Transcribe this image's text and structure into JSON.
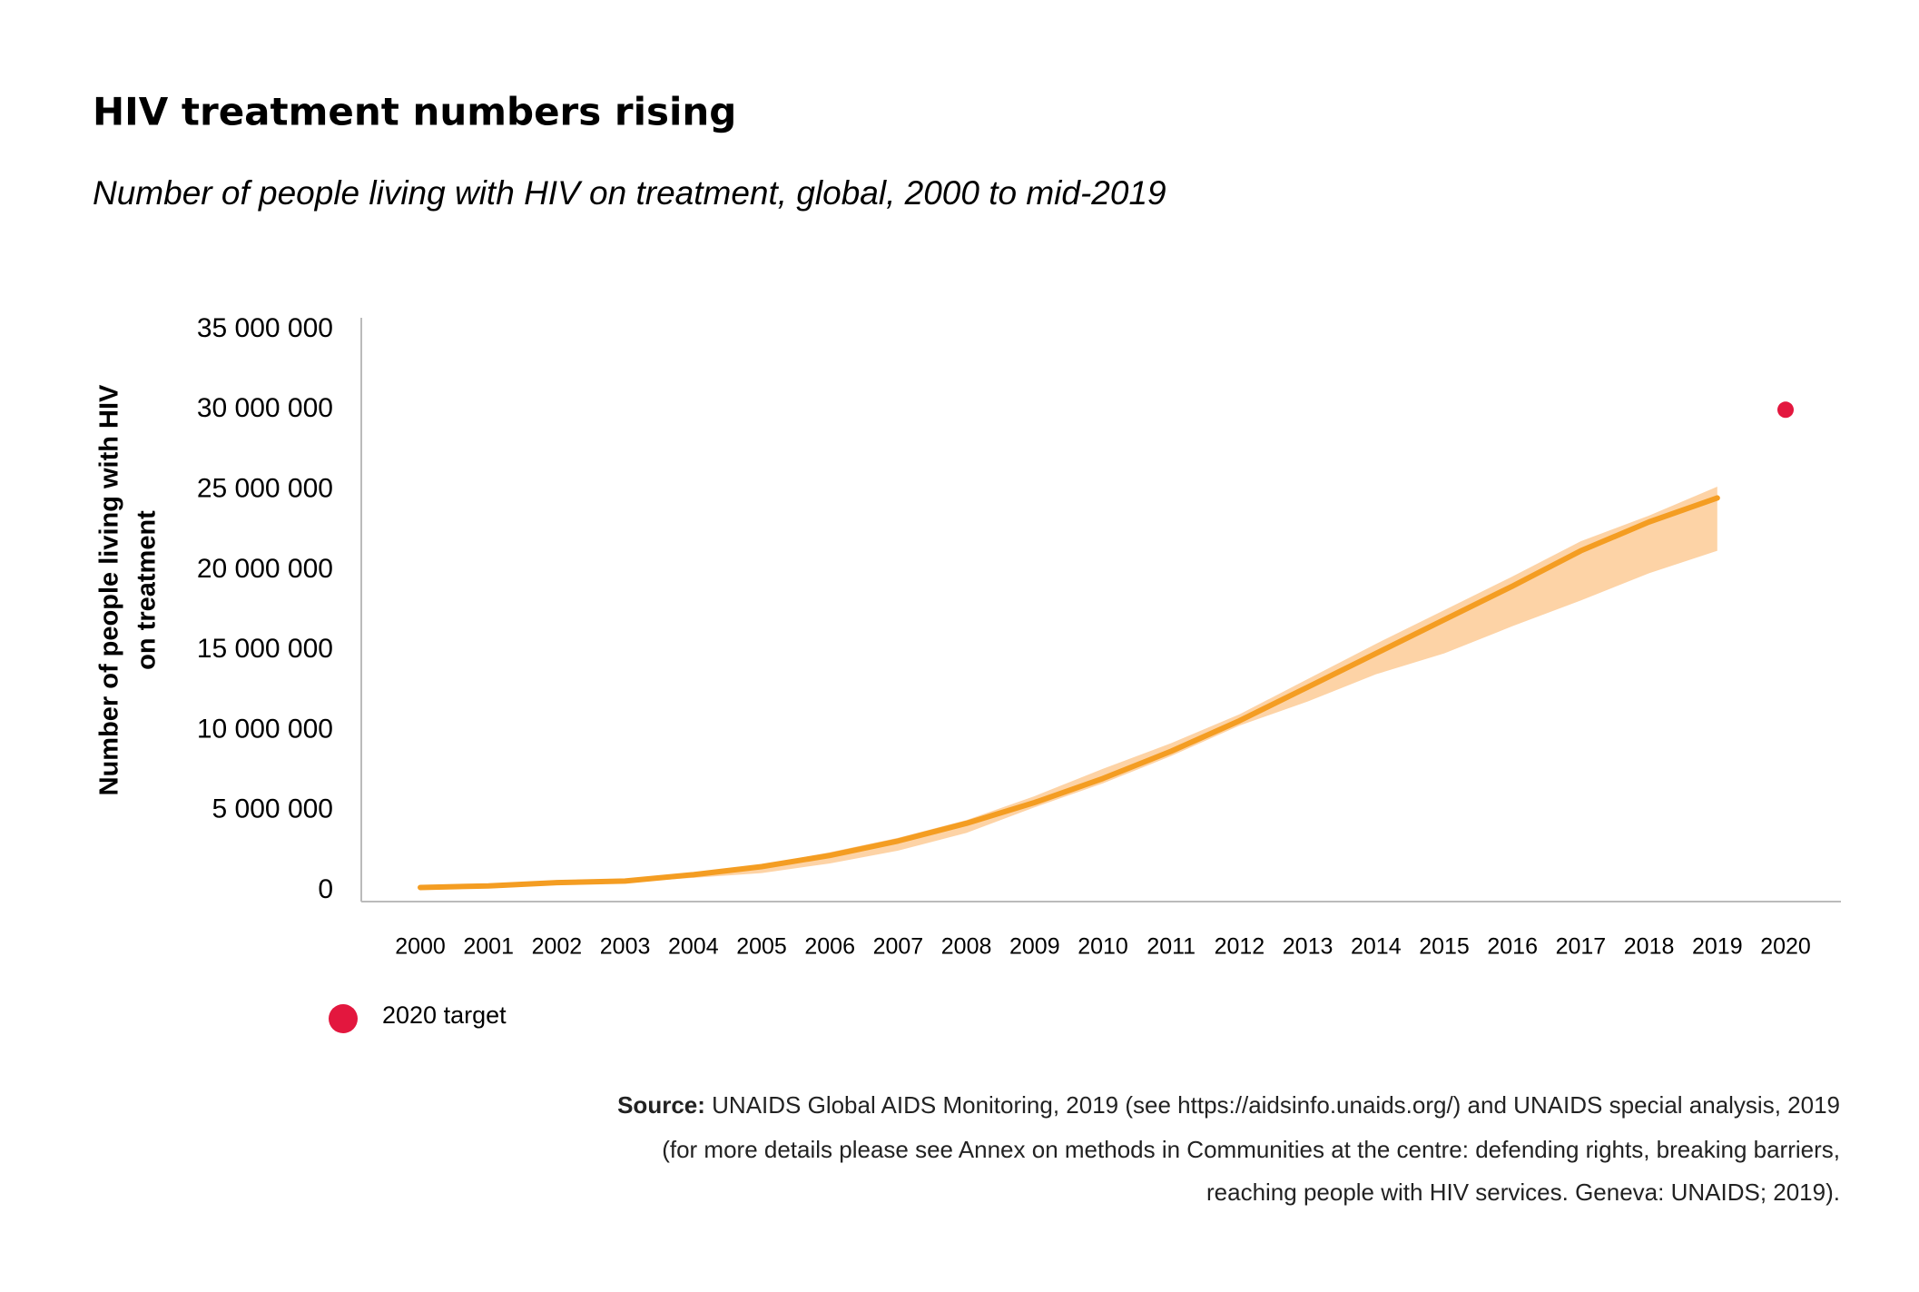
{
  "chart_data": {
    "type": "line",
    "title": "HIV treatment numbers rising",
    "subtitle": "Number of people living with HIV on treatment, global, 2000 to mid-2019",
    "y_label": [
      "Number of people living with HIV",
      "on treatment"
    ],
    "categories": [
      "2000",
      "2001",
      "2002",
      "2003",
      "2004",
      "2005",
      "2006",
      "2007",
      "2008",
      "2009",
      "2010",
      "2011",
      "2012",
      "2013",
      "2014",
      "2015",
      "2016",
      "2017",
      "2018",
      "2019",
      "2020"
    ],
    "series": [
      {
        "color": "#f49d22",
        "values": [
          200000,
          300000,
          500000,
          600000,
          1000000,
          1500000,
          2200000,
          3100000,
          4200000,
          5500000,
          7000000,
          8700000,
          10600000,
          12700000,
          14800000,
          16900000,
          19000000,
          21200000,
          23000000,
          24500000,
          null
        ],
        "band_lower": [
          100000,
          200000,
          400000,
          500000,
          800000,
          1100000,
          1700000,
          2500000,
          3600000,
          5200000,
          6700000,
          8400000,
          10300000,
          11800000,
          13500000,
          14800000,
          16500000,
          18100000,
          19800000,
          21200000,
          null
        ],
        "band_upper": [
          200000,
          400000,
          600000,
          700000,
          1100000,
          1600000,
          2400000,
          3300000,
          4400000,
          5900000,
          7600000,
          9200000,
          11000000,
          13200000,
          15400000,
          17500000,
          19600000,
          21800000,
          23400000,
          25200000,
          null
        ],
        "band_color": "#fdd3a6"
      }
    ],
    "target": {
      "name": "2020 target",
      "color": "#e3173e",
      "values": [
        null,
        null,
        null,
        null,
        null,
        null,
        null,
        null,
        null,
        null,
        null,
        null,
        null,
        null,
        null,
        null,
        null,
        null,
        null,
        null,
        30000000
      ]
    },
    "ylim": [
      0,
      35000000
    ],
    "yticks": [
      {
        "value": 0,
        "label": "0"
      },
      {
        "value": 5000000,
        "label": "5 000 000"
      },
      {
        "value": 10000000,
        "label": "10 000 000"
      },
      {
        "value": 15000000,
        "label": "15 000 000"
      },
      {
        "value": 20000000,
        "label": "20 000 000"
      },
      {
        "value": 25000000,
        "label": "25 000 000"
      },
      {
        "value": 30000000,
        "label": "30 000 000"
      },
      {
        "value": 35000000,
        "label": "35 000 000"
      }
    ],
    "grid": false,
    "source_label": "Source:",
    "source_lines": [
      "UNAIDS Global AIDS Monitoring, 2019 (see https://aidsinfo.unaids.org/) and UNAIDS special analysis, 2019",
      "(for more details please see Annex on methods in Communities at the centre: defending rights, breaking barriers,",
      "reaching people with HIV services. Geneva: UNAIDS; 2019)."
    ]
  }
}
